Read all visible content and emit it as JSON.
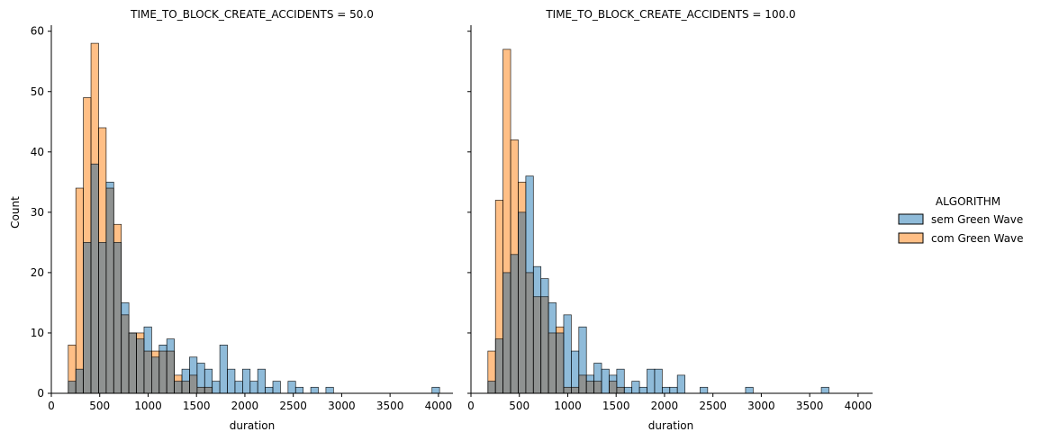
{
  "chart_data": [
    {
      "type": "bar",
      "title": "TIME_TO_BLOCK_CREATE_ACCIDENTS = 50.0",
      "xlabel": "duration",
      "ylabel": "Count",
      "xlim": [
        0,
        4150
      ],
      "ylim": [
        0,
        61
      ],
      "xticks": [
        0,
        500,
        1000,
        1500,
        2000,
        2500,
        3000,
        3500,
        4000
      ],
      "yticks": [
        0,
        10,
        20,
        30,
        40,
        50,
        60
      ],
      "bin_start": 175,
      "bin_width": 78.3,
      "series": [
        {
          "name": "sem Green Wave",
          "values": [
            2,
            4,
            25,
            38,
            25,
            35,
            25,
            15,
            10,
            9,
            11,
            6,
            8,
            9,
            2,
            4,
            6,
            5,
            4,
            2,
            8,
            4,
            2,
            4,
            2,
            4,
            1,
            2,
            0,
            2,
            1,
            0,
            1,
            0,
            1,
            0,
            0,
            0,
            0,
            0,
            0,
            0,
            0,
            0,
            0,
            0,
            0,
            0,
            1
          ]
        },
        {
          "name": "com Green Wave",
          "values": [
            8,
            34,
            49,
            58,
            44,
            34,
            28,
            13,
            10,
            10,
            7,
            7,
            7,
            7,
            3,
            2,
            3,
            1,
            1,
            0,
            0,
            0,
            0,
            0,
            0,
            0,
            0,
            0,
            0,
            0,
            0,
            0,
            0,
            0,
            0,
            0,
            0,
            0,
            0,
            0,
            0,
            0,
            0,
            0,
            0,
            0,
            0,
            0,
            0
          ]
        }
      ]
    },
    {
      "type": "bar",
      "title": "TIME_TO_BLOCK_CREATE_ACCIDENTS = 100.0",
      "xlabel": "duration",
      "ylabel": "",
      "xlim": [
        0,
        4150
      ],
      "ylim": [
        0,
        61
      ],
      "xticks": [
        0,
        500,
        1000,
        1500,
        2000,
        2500,
        3000,
        3500,
        4000
      ],
      "yticks": [
        0,
        10,
        20,
        30,
        40,
        50,
        60
      ],
      "bin_start": 175,
      "bin_width": 78.3,
      "series": [
        {
          "name": "sem Green Wave",
          "values": [
            2,
            9,
            20,
            23,
            30,
            36,
            21,
            19,
            15,
            10,
            13,
            7,
            11,
            3,
            5,
            4,
            3,
            4,
            1,
            2,
            1,
            4,
            4,
            1,
            1,
            3,
            0,
            0,
            1,
            0,
            0,
            0,
            0,
            0,
            1,
            0,
            0,
            0,
            0,
            0,
            0,
            0,
            0,
            0,
            1
          ]
        },
        {
          "name": "com Green Wave",
          "values": [
            7,
            32,
            57,
            42,
            35,
            20,
            16,
            16,
            10,
            11,
            1,
            1,
            3,
            2,
            2,
            0,
            2,
            1,
            0,
            0,
            0,
            0,
            0,
            0,
            0,
            0,
            0,
            0,
            0,
            0,
            0,
            0,
            0,
            0,
            0,
            0,
            0,
            0,
            0,
            0,
            0,
            0,
            0,
            0,
            0
          ]
        }
      ]
    }
  ],
  "legend": {
    "title": "ALGORITHM",
    "entries": [
      {
        "label": "sem Green Wave",
        "color": "#1f77b4"
      },
      {
        "label": "com Green Wave",
        "color": "#ff7f0e"
      }
    ]
  },
  "colors": {
    "sem": "#1f77b4",
    "com": "#ff7f0e",
    "overlap": "#8f9291",
    "bar_alpha": 0.5
  }
}
